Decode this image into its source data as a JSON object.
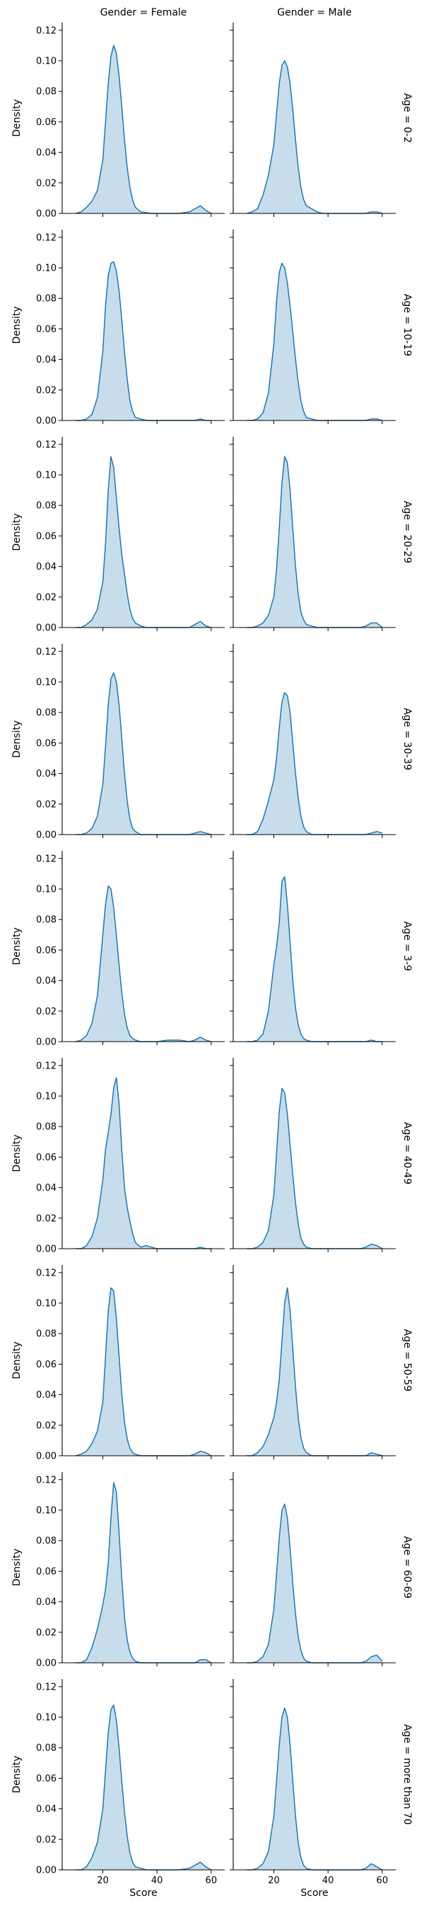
{
  "chart_data": {
    "type": "area",
    "kind": "kde facet grid",
    "col_titles": [
      "Gender = Female",
      "Gender = Male"
    ],
    "row_titles": [
      "Age = 0-2",
      "Age = 10-19",
      "Age = 20-29",
      "Age = 30-39",
      "Age = 3-9",
      "Age = 40-49",
      "Age = 50-59",
      "Age = 60-69",
      "Age = more than 70"
    ],
    "ylabel": "Density",
    "xlabel": "Score",
    "xlim": [
      5,
      65
    ],
    "ylim": [
      0,
      0.125
    ],
    "xticks": [
      20,
      40,
      60
    ],
    "yticks": [
      0.0,
      0.02,
      0.04,
      0.06,
      0.08,
      0.1,
      0.12
    ],
    "ytick_labels": [
      "0.00",
      "0.02",
      "0.04",
      "0.06",
      "0.08",
      "0.10",
      "0.12"
    ],
    "line_color": "#1f77b4",
    "fill_color": "#1f77b4",
    "fill_opacity": 0.25,
    "x": [
      10,
      12,
      14,
      16,
      18,
      20,
      21,
      22,
      23,
      24,
      25,
      26,
      27,
      28,
      29,
      30,
      31,
      32,
      34,
      36,
      38,
      40,
      44,
      48,
      52,
      54,
      56,
      58,
      60
    ],
    "panels": [
      [
        {
          "y": [
            0.0,
            0.001,
            0.004,
            0.008,
            0.015,
            0.035,
            0.06,
            0.085,
            0.103,
            0.11,
            0.105,
            0.09,
            0.07,
            0.048,
            0.03,
            0.017,
            0.009,
            0.004,
            0.001,
            0.0005,
            0.0,
            0.0,
            0.0,
            0.0,
            0.001,
            0.003,
            0.005,
            0.002,
            0.0
          ]
        },
        {
          "y": [
            0.0,
            0.001,
            0.003,
            0.012,
            0.025,
            0.045,
            0.065,
            0.085,
            0.097,
            0.1,
            0.096,
            0.085,
            0.068,
            0.048,
            0.03,
            0.017,
            0.009,
            0.005,
            0.003,
            0.001,
            0.0,
            0.0,
            0.0,
            0.0,
            0.0,
            0.0,
            0.001,
            0.001,
            0.0
          ]
        }
      ],
      [
        {
          "y": [
            0.0,
            0.0,
            0.001,
            0.004,
            0.015,
            0.045,
            0.075,
            0.095,
            0.103,
            0.104,
            0.098,
            0.085,
            0.066,
            0.045,
            0.027,
            0.013,
            0.006,
            0.002,
            0.001,
            0.0,
            0.0,
            0.0,
            0.0,
            0.0,
            0.0,
            0.0,
            0.001,
            0.0,
            0.0
          ]
        },
        {
          "y": [
            0.0,
            0.0,
            0.001,
            0.005,
            0.018,
            0.05,
            0.078,
            0.097,
            0.103,
            0.1,
            0.09,
            0.075,
            0.058,
            0.04,
            0.025,
            0.013,
            0.006,
            0.002,
            0.001,
            0.0,
            0.0,
            0.0,
            0.0,
            0.0,
            0.0,
            0.0,
            0.001,
            0.001,
            0.0
          ]
        }
      ],
      [
        {
          "y": [
            0.0,
            0.0,
            0.002,
            0.005,
            0.012,
            0.03,
            0.055,
            0.09,
            0.112,
            0.105,
            0.085,
            0.065,
            0.048,
            0.035,
            0.022,
            0.012,
            0.006,
            0.003,
            0.001,
            0.0,
            0.0,
            0.0,
            0.0,
            0.0,
            0.0,
            0.002,
            0.004,
            0.001,
            0.0
          ]
        },
        {
          "y": [
            0.0,
            0.0,
            0.001,
            0.003,
            0.008,
            0.02,
            0.038,
            0.065,
            0.095,
            0.112,
            0.108,
            0.09,
            0.065,
            0.04,
            0.022,
            0.01,
            0.005,
            0.002,
            0.001,
            0.0,
            0.0,
            0.0,
            0.0,
            0.0,
            0.0,
            0.001,
            0.003,
            0.003,
            0.0
          ]
        }
      ],
      [
        {
          "y": [
            0.0,
            0.0,
            0.001,
            0.004,
            0.012,
            0.033,
            0.058,
            0.085,
            0.102,
            0.106,
            0.1,
            0.085,
            0.063,
            0.04,
            0.022,
            0.01,
            0.004,
            0.002,
            0.0,
            0.0,
            0.0,
            0.0,
            0.0,
            0.0,
            0.0,
            0.001,
            0.002,
            0.001,
            0.0
          ]
        },
        {
          "y": [
            0.0,
            0.0,
            0.002,
            0.01,
            0.022,
            0.036,
            0.05,
            0.07,
            0.087,
            0.093,
            0.091,
            0.08,
            0.06,
            0.04,
            0.024,
            0.012,
            0.005,
            0.002,
            0.0,
            0.0,
            0.0,
            0.0,
            0.0,
            0.0,
            0.0,
            0.0,
            0.001,
            0.002,
            0.001
          ]
        }
      ],
      [
        {
          "y": [
            0.0,
            0.001,
            0.004,
            0.012,
            0.03,
            0.07,
            0.09,
            0.102,
            0.1,
            0.088,
            0.07,
            0.05,
            0.032,
            0.018,
            0.009,
            0.004,
            0.002,
            0.001,
            0.0,
            0.0,
            0.0,
            0.0,
            0.001,
            0.001,
            0.0,
            0.001,
            0.003,
            0.001,
            0.0
          ]
        },
        {
          "y": [
            0.0,
            0.0,
            0.001,
            0.005,
            0.02,
            0.05,
            0.062,
            0.078,
            0.105,
            0.108,
            0.09,
            0.065,
            0.04,
            0.022,
            0.011,
            0.005,
            0.002,
            0.001,
            0.0,
            0.0,
            0.0,
            0.0,
            0.0,
            0.0,
            0.0,
            0.0,
            0.001,
            0.0,
            0.0
          ]
        }
      ],
      [
        {
          "y": [
            0.0,
            0.0,
            0.002,
            0.008,
            0.02,
            0.045,
            0.065,
            0.076,
            0.088,
            0.105,
            0.112,
            0.095,
            0.065,
            0.04,
            0.027,
            0.018,
            0.01,
            0.004,
            0.001,
            0.002,
            0.001,
            0.0,
            0.0,
            0.0,
            0.0,
            0.0,
            0.001,
            0.0,
            0.0
          ]
        },
        {
          "y": [
            0.0,
            0.0,
            0.001,
            0.004,
            0.012,
            0.035,
            0.062,
            0.09,
            0.105,
            0.102,
            0.088,
            0.068,
            0.048,
            0.03,
            0.016,
            0.007,
            0.003,
            0.001,
            0.0,
            0.0,
            0.0,
            0.0,
            0.0,
            0.0,
            0.0,
            0.001,
            0.003,
            0.002,
            0.0
          ]
        }
      ],
      [
        {
          "y": [
            0.0,
            0.001,
            0.003,
            0.008,
            0.016,
            0.035,
            0.065,
            0.095,
            0.11,
            0.108,
            0.09,
            0.065,
            0.04,
            0.022,
            0.011,
            0.005,
            0.002,
            0.001,
            0.0,
            0.0,
            0.0,
            0.0,
            0.0,
            0.0,
            0.0,
            0.001,
            0.003,
            0.002,
            0.0
          ]
        },
        {
          "y": [
            0.0,
            0.0,
            0.002,
            0.006,
            0.014,
            0.025,
            0.035,
            0.05,
            0.075,
            0.1,
            0.11,
            0.095,
            0.07,
            0.045,
            0.025,
            0.012,
            0.005,
            0.002,
            0.0,
            0.0,
            0.0,
            0.0,
            0.0,
            0.0,
            0.0,
            0.0,
            0.002,
            0.001,
            0.0
          ]
        }
      ],
      [
        {
          "y": [
            0.0,
            0.0,
            0.002,
            0.01,
            0.022,
            0.038,
            0.048,
            0.065,
            0.095,
            0.118,
            0.112,
            0.085,
            0.055,
            0.03,
            0.015,
            0.007,
            0.003,
            0.001,
            0.0,
            0.0,
            0.0,
            0.0,
            0.0,
            0.0,
            0.0,
            0.0,
            0.002,
            0.002,
            0.0
          ]
        },
        {
          "y": [
            0.0,
            0.0,
            0.001,
            0.004,
            0.012,
            0.035,
            0.058,
            0.082,
            0.1,
            0.104,
            0.095,
            0.075,
            0.052,
            0.032,
            0.017,
            0.008,
            0.003,
            0.001,
            0.0,
            0.0,
            0.0,
            0.0,
            0.0,
            0.0,
            0.0,
            0.001,
            0.004,
            0.005,
            0.001
          ]
        }
      ],
      [
        {
          "y": [
            0.0,
            0.0,
            0.002,
            0.008,
            0.018,
            0.04,
            0.065,
            0.09,
            0.105,
            0.108,
            0.098,
            0.08,
            0.058,
            0.038,
            0.022,
            0.011,
            0.005,
            0.002,
            0.001,
            0.0,
            0.0,
            0.0,
            0.0,
            0.0,
            0.001,
            0.003,
            0.005,
            0.002,
            0.0
          ]
        },
        {
          "y": [
            0.0,
            0.0,
            0.001,
            0.004,
            0.012,
            0.035,
            0.058,
            0.082,
            0.1,
            0.106,
            0.1,
            0.082,
            0.058,
            0.035,
            0.018,
            0.008,
            0.003,
            0.001,
            0.0,
            0.0,
            0.0,
            0.0,
            0.0,
            0.0,
            0.0,
            0.001,
            0.004,
            0.002,
            0.0
          ]
        }
      ]
    ]
  }
}
